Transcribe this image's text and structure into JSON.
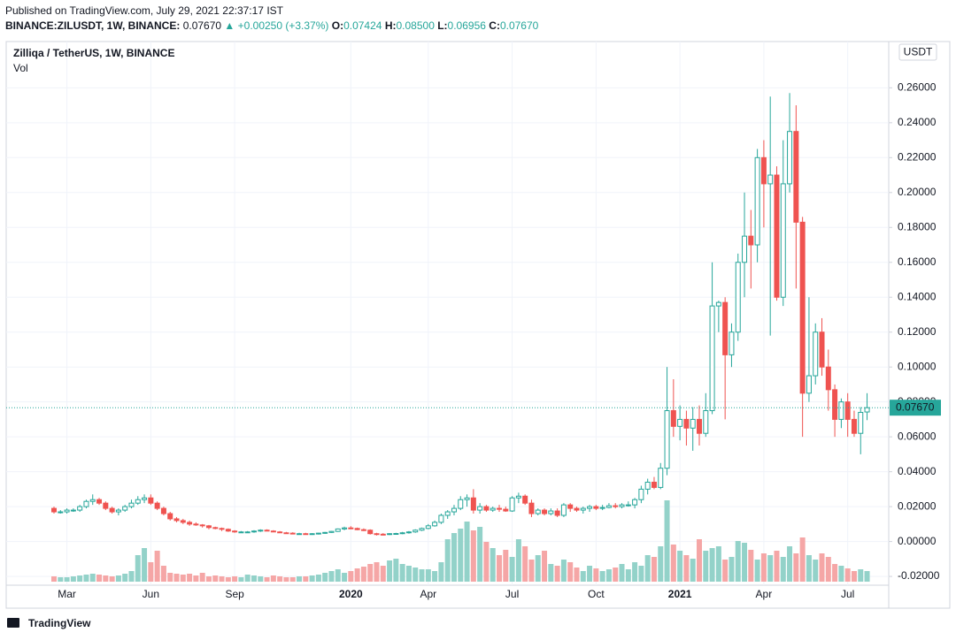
{
  "header": {
    "published": "Published on TradingView.com, July 29, 2021 22:37:17 IST",
    "symbol": "BINANCE:ZILUSDT, 1W, BINANCE:",
    "last": "0.07670",
    "change": "+0.00250 (+3.37%)",
    "ohlc": [
      {
        "key": "O:",
        "value": "0.07424"
      },
      {
        "key": "H:",
        "value": "0.08500"
      },
      {
        "key": "L:",
        "value": "0.06956"
      },
      {
        "key": "C:",
        "value": "0.07670"
      }
    ]
  },
  "footer": "TradingView",
  "chart_data": {
    "type": "candlestick",
    "title": "Zilliqa / TetherUS, 1W, BINANCE",
    "volume_label": "Vol",
    "currency": "USDT",
    "price_label": "0.07670",
    "up_color": "#26a69a",
    "down_color": "#ef5350",
    "up_volume_color": "#93d2c9",
    "down_volume_color": "#f5a6a6",
    "grid": true,
    "ylim": [
      -0.023,
      0.285
    ],
    "yticks": [
      {
        "value": -0.02,
        "label": "-0.02000"
      },
      {
        "value": 0,
        "label": "0.00000"
      },
      {
        "value": 0.02,
        "label": "0.02000"
      },
      {
        "value": 0.04,
        "label": "0.04000"
      },
      {
        "value": 0.06,
        "label": "0.06000"
      },
      {
        "value": 0.08,
        "label": "0.08000"
      },
      {
        "value": 0.1,
        "label": "0.10000"
      },
      {
        "value": 0.12,
        "label": "0.12000"
      },
      {
        "value": 0.14,
        "label": "0.14000"
      },
      {
        "value": 0.16,
        "label": "0.16000"
      },
      {
        "value": 0.18,
        "label": "0.18000"
      },
      {
        "value": 0.2,
        "label": "0.20000"
      },
      {
        "value": 0.22,
        "label": "0.22000"
      },
      {
        "value": 0.24,
        "label": "0.24000"
      },
      {
        "value": 0.26,
        "label": "0.26000"
      }
    ],
    "categories": [
      null,
      null,
      "Mar",
      null,
      null,
      null,
      null,
      null,
      null,
      null,
      null,
      null,
      null,
      null,
      null,
      "Jun",
      null,
      null,
      null,
      null,
      null,
      null,
      null,
      null,
      null,
      null,
      null,
      null,
      "Sep",
      null,
      null,
      null,
      null,
      null,
      null,
      null,
      null,
      null,
      null,
      null,
      null,
      null,
      null,
      null,
      null,
      null,
      "2020",
      null,
      null,
      null,
      null,
      null,
      null,
      null,
      null,
      null,
      null,
      null,
      "Apr",
      null,
      null,
      null,
      null,
      null,
      null,
      null,
      null,
      null,
      null,
      null,
      null,
      "Jul",
      null,
      null,
      null,
      null,
      null,
      null,
      null,
      null,
      null,
      null,
      null,
      null,
      "Oct",
      null,
      null,
      null,
      null,
      null,
      null,
      null,
      null,
      null,
      null,
      null,
      null,
      "2021",
      null,
      null,
      null,
      null,
      null,
      null,
      null,
      null,
      null,
      null,
      null,
      null,
      "Apr",
      null,
      null,
      null,
      null,
      null,
      null,
      null,
      null,
      null,
      null,
      null,
      null,
      "Jul",
      null,
      null,
      null
    ],
    "open": [
      0.019,
      0.017,
      0.017,
      0.018,
      0.018,
      0.02,
      0.023,
      0.024,
      0.022,
      0.019,
      0.017,
      0.018,
      0.02,
      0.022,
      0.024,
      0.025,
      0.022,
      0.019,
      0.016,
      0.013,
      0.012,
      0.011,
      0.01,
      0.0095,
      0.009,
      0.008,
      0.0075,
      0.007,
      0.006,
      0.0055,
      0.0055,
      0.0055,
      0.006,
      0.0065,
      0.006,
      0.0055,
      0.005,
      0.0048,
      0.0045,
      0.0045,
      0.0042,
      0.0045,
      0.0048,
      0.0052,
      0.0058,
      0.0072,
      0.0078,
      0.0075,
      0.0068,
      0.0065,
      0.0045,
      0.0042,
      0.004,
      0.0045,
      0.0046,
      0.005,
      0.0055,
      0.0065,
      0.0075,
      0.009,
      0.011,
      0.015,
      0.017,
      0.019,
      0.024,
      0.025,
      0.018,
      0.02,
      0.018,
      0.019,
      0.0185,
      0.0175,
      0.025,
      0.026,
      0.022,
      0.016,
      0.018,
      0.016,
      0.0175,
      0.015,
      0.021,
      0.019,
      0.018,
      0.019,
      0.02,
      0.019,
      0.0195,
      0.0205,
      0.02,
      0.021,
      0.021,
      0.024,
      0.03,
      0.034,
      0.031,
      0.042,
      0.075,
      0.066,
      0.07,
      0.065,
      0.07,
      0.062,
      0.075,
      0.135,
      0.137,
      0.107,
      0.12,
      0.16,
      0.175,
      0.17,
      0.22,
      0.205,
      0.21,
      0.14,
      0.205,
      0.235,
      0.183,
      0.085,
      0.095,
      0.12,
      0.1,
      0.087,
      0.07,
      0.08,
      0.07,
      0.062,
      0.07424
    ],
    "high": [
      0.02,
      0.018,
      0.019,
      0.019,
      0.021,
      0.024,
      0.027,
      0.025,
      0.023,
      0.02,
      0.019,
      0.021,
      0.024,
      0.026,
      0.027,
      0.027,
      0.023,
      0.02,
      0.017,
      0.014,
      0.013,
      0.012,
      0.011,
      0.01,
      0.0095,
      0.0085,
      0.008,
      0.0075,
      0.0065,
      0.006,
      0.006,
      0.0065,
      0.007,
      0.007,
      0.0065,
      0.006,
      0.0055,
      0.0053,
      0.005,
      0.005,
      0.0048,
      0.005,
      0.0055,
      0.006,
      0.0075,
      0.0085,
      0.0088,
      0.008,
      0.0075,
      0.007,
      0.005,
      0.0048,
      0.0048,
      0.005,
      0.0055,
      0.006,
      0.007,
      0.008,
      0.01,
      0.012,
      0.016,
      0.018,
      0.021,
      0.026,
      0.027,
      0.03,
      0.022,
      0.021,
      0.02,
      0.021,
      0.02,
      0.026,
      0.028,
      0.027,
      0.024,
      0.019,
      0.019,
      0.019,
      0.019,
      0.022,
      0.022,
      0.02,
      0.02,
      0.021,
      0.021,
      0.021,
      0.022,
      0.022,
      0.022,
      0.023,
      0.025,
      0.032,
      0.036,
      0.037,
      0.045,
      0.1,
      0.093,
      0.078,
      0.075,
      0.077,
      0.078,
      0.085,
      0.16,
      0.138,
      0.14,
      0.125,
      0.165,
      0.2,
      0.19,
      0.225,
      0.23,
      0.255,
      0.215,
      0.23,
      0.257,
      0.25,
      0.186,
      0.14,
      0.125,
      0.128,
      0.11,
      0.09,
      0.082,
      0.085,
      0.075,
      0.077,
      0.085
    ],
    "low": [
      0.016,
      0.016,
      0.016,
      0.017,
      0.017,
      0.019,
      0.021,
      0.021,
      0.018,
      0.016,
      0.015,
      0.017,
      0.019,
      0.021,
      0.022,
      0.021,
      0.018,
      0.015,
      0.012,
      0.011,
      0.01,
      0.009,
      0.009,
      0.008,
      0.007,
      0.007,
      0.006,
      0.0055,
      0.005,
      0.005,
      0.005,
      0.005,
      0.0055,
      0.006,
      0.0055,
      0.005,
      0.0045,
      0.0043,
      0.004,
      0.004,
      0.0038,
      0.004,
      0.0044,
      0.005,
      0.0055,
      0.0065,
      0.007,
      0.0065,
      0.006,
      0.004,
      0.0035,
      0.0035,
      0.0037,
      0.004,
      0.0042,
      0.0045,
      0.005,
      0.006,
      0.007,
      0.0085,
      0.01,
      0.013,
      0.015,
      0.018,
      0.02,
      0.016,
      0.016,
      0.017,
      0.017,
      0.017,
      0.017,
      0.017,
      0.022,
      0.021,
      0.014,
      0.015,
      0.015,
      0.015,
      0.014,
      0.014,
      0.017,
      0.017,
      0.016,
      0.017,
      0.018,
      0.018,
      0.019,
      0.019,
      0.019,
      0.02,
      0.019,
      0.022,
      0.027,
      0.03,
      0.03,
      0.038,
      0.06,
      0.058,
      0.055,
      0.052,
      0.055,
      0.06,
      0.073,
      0.12,
      0.07,
      0.1,
      0.115,
      0.14,
      0.145,
      0.16,
      0.18,
      0.118,
      0.138,
      0.135,
      0.2,
      0.145,
      0.06,
      0.08,
      0.09,
      0.095,
      0.075,
      0.06,
      0.065,
      0.06,
      0.06,
      0.05,
      0.06956
    ],
    "close": [
      0.017,
      0.017,
      0.018,
      0.018,
      0.02,
      0.023,
      0.024,
      0.022,
      0.019,
      0.017,
      0.018,
      0.02,
      0.022,
      0.024,
      0.025,
      0.022,
      0.019,
      0.016,
      0.013,
      0.012,
      0.011,
      0.01,
      0.0095,
      0.009,
      0.008,
      0.0075,
      0.007,
      0.006,
      0.0055,
      0.0055,
      0.0055,
      0.006,
      0.0065,
      0.006,
      0.0055,
      0.005,
      0.0048,
      0.0045,
      0.0045,
      0.0042,
      0.0045,
      0.0048,
      0.0052,
      0.0058,
      0.0072,
      0.0078,
      0.0075,
      0.0068,
      0.0065,
      0.0045,
      0.0042,
      0.004,
      0.0045,
      0.0046,
      0.005,
      0.0055,
      0.0065,
      0.0075,
      0.009,
      0.011,
      0.015,
      0.017,
      0.019,
      0.024,
      0.025,
      0.018,
      0.02,
      0.018,
      0.019,
      0.0185,
      0.0175,
      0.025,
      0.026,
      0.022,
      0.016,
      0.018,
      0.016,
      0.0175,
      0.015,
      0.021,
      0.019,
      0.018,
      0.019,
      0.02,
      0.019,
      0.0195,
      0.0205,
      0.02,
      0.021,
      0.021,
      0.024,
      0.03,
      0.034,
      0.031,
      0.042,
      0.075,
      0.066,
      0.07,
      0.065,
      0.07,
      0.062,
      0.075,
      0.135,
      0.137,
      0.107,
      0.12,
      0.16,
      0.175,
      0.17,
      0.22,
      0.205,
      0.21,
      0.14,
      0.205,
      0.235,
      0.183,
      0.085,
      0.095,
      0.12,
      0.1,
      0.087,
      0.07,
      0.08,
      0.07,
      0.062,
      0.074,
      0.0767
    ],
    "volume": [
      6,
      5,
      5,
      6,
      7,
      8,
      9,
      8,
      7,
      6,
      7,
      9,
      12,
      30,
      38,
      22,
      35,
      18,
      10,
      9,
      8,
      9,
      7,
      10,
      6,
      7,
      6,
      5,
      6,
      5,
      8,
      7,
      6,
      5,
      7,
      6,
      5,
      5,
      6,
      6,
      7,
      8,
      10,
      12,
      14,
      10,
      12,
      15,
      17,
      20,
      22,
      18,
      24,
      26,
      20,
      18,
      16,
      14,
      14,
      12,
      22,
      48,
      55,
      60,
      68,
      58,
      62,
      45,
      38,
      30,
      36,
      28,
      48,
      40,
      25,
      30,
      35,
      20,
      18,
      25,
      22,
      16,
      12,
      18,
      15,
      12,
      14,
      16,
      20,
      14,
      22,
      18,
      30,
      28,
      40,
      92,
      42,
      35,
      30,
      26,
      48,
      35,
      38,
      40,
      25,
      28,
      46,
      44,
      36,
      25,
      32,
      30,
      35,
      28,
      40,
      32,
      50,
      30,
      25,
      32,
      28,
      20,
      18,
      15,
      12,
      14,
      12
    ]
  }
}
